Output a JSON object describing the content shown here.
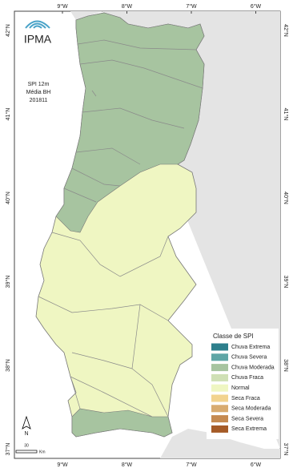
{
  "header": {
    "logo": "IPMA",
    "info": [
      "SPI 12m",
      "Média BH",
      "201811"
    ]
  },
  "graticule": {
    "lon_labels": [
      "9°W",
      "8°W",
      "7°W",
      "6°W"
    ],
    "lat_labels": [
      "42°N",
      "41°N",
      "40°N",
      "39°N",
      "38°N",
      "37°N"
    ]
  },
  "legend": {
    "title": "Classe de SPI",
    "items": [
      {
        "label": "Chuva Extrema",
        "color": "#2d7f8c"
      },
      {
        "label": "Chuva Severa",
        "color": "#5fa6a6"
      },
      {
        "label": "Chuva Moderada",
        "color": "#a7c4a0"
      },
      {
        "label": "Chuva Fraca",
        "color": "#cfe0b5"
      },
      {
        "label": "Normal",
        "color": "#eff6c2"
      },
      {
        "label": "Seca Fraca",
        "color": "#f2d38f"
      },
      {
        "label": "Seca Moderada",
        "color": "#d8ab70"
      },
      {
        "label": "Seca Severa",
        "color": "#c58a50"
      },
      {
        "label": "Seca Extrema",
        "color": "#a55b27"
      }
    ]
  },
  "north_arrow": "N",
  "scale": {
    "value": "30",
    "unit": "Km"
  }
}
